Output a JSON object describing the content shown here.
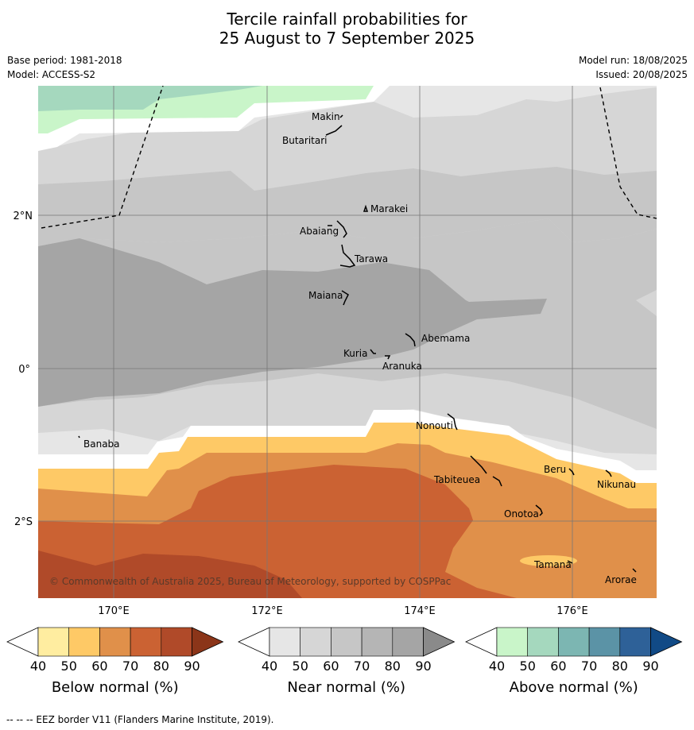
{
  "title_line1": "Tercile rainfall probabilities for",
  "title_line2": "25 August to 7 September 2025",
  "base_period": "Base period: 1981-2018",
  "model": "Model: ACCESS-S2",
  "model_run": "Model run: 18/08/2025",
  "issued": "Issued: 20/08/2025",
  "copyright": "© Commonwealth of Australia 2025, Bureau of Meteorology, supported by COSPPac",
  "lat_labels": [
    "2°N",
    "0°",
    "2°S"
  ],
  "lon_labels": [
    "170°E",
    "172°E",
    "174°E",
    "176°E"
  ],
  "places": [
    "Makin",
    "Butaritari",
    "Marakei",
    "Abaiang",
    "Tarawa",
    "Maiana",
    "Abemama",
    "Kuria",
    "Aranuka",
    "Nonouti",
    "Banaba",
    "Tabiteuea",
    "Beru",
    "Nikunau",
    "Onotoa",
    "Tamana",
    "Arorae"
  ],
  "colorbars": [
    {
      "label": "Below normal (%)",
      "ticks": [
        "40",
        "50",
        "60",
        "70",
        "80",
        "90"
      ],
      "colors": [
        "#ffffff",
        "#ffeda0",
        "#fec966",
        "#e0904a",
        "#cb6233",
        "#b04a29",
        "#8b3519"
      ]
    },
    {
      "label": "Near normal (%)",
      "ticks": [
        "40",
        "50",
        "60",
        "70",
        "80",
        "90"
      ],
      "colors": [
        "#ffffff",
        "#e6e6e6",
        "#d6d6d6",
        "#c6c6c6",
        "#b5b5b5",
        "#a5a5a5",
        "#8a8a8a"
      ]
    },
    {
      "label": "Above normal (%)",
      "ticks": [
        "40",
        "50",
        "60",
        "70",
        "80",
        "90"
      ],
      "colors": [
        "#ffffff",
        "#c9f5c9",
        "#a5d8be",
        "#7cb6b2",
        "#5b93a6",
        "#2e6198",
        "#114a86"
      ]
    }
  ],
  "footnote": "--  --  -- EEZ border V11 (Flanders Marine Institute, 2019)."
}
